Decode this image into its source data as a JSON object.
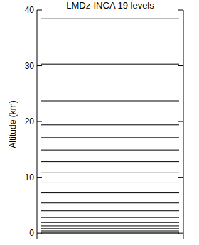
{
  "chart_data": {
    "type": "levels",
    "title": "LMDz-INCA 19 levels",
    "y_label": "Altitude (km)",
    "values": [
      0,
      0.15,
      0.4,
      0.8,
      1.3,
      1.9,
      2.8,
      4.0,
      5.4,
      7.2,
      9.0,
      10.8,
      12.8,
      14.9,
      17.1,
      19.4,
      23.7,
      30.3,
      38.5
    ],
    "color": "#000000",
    "ylim": [
      -1,
      40
    ],
    "yticks": [
      0,
      10,
      20,
      30,
      40
    ],
    "tick_labels": "y"
  }
}
